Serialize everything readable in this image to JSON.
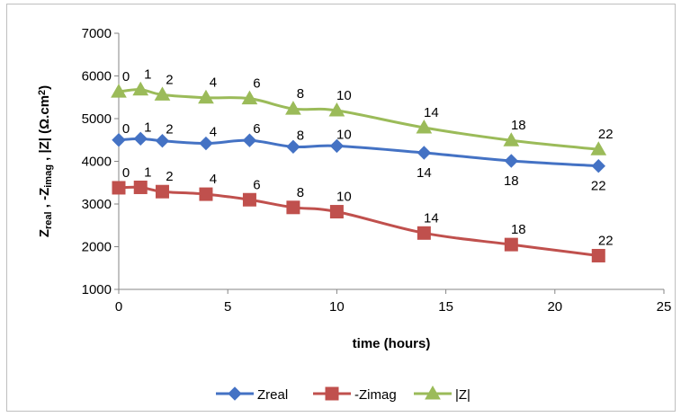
{
  "chart_data": {
    "type": "line",
    "xlabel": "time (hours)",
    "ylabel": "Zreal , -Zimag , |Z| (Ω.cm²)",
    "ylabel_parts": {
      "z1": "Z",
      "sub1": "real",
      "sep1": " , -Z",
      "sub2": "imag",
      "rest": " , |Z| (Ω.cm",
      "sup": "2",
      "end": ")"
    },
    "xlim": [
      0,
      25
    ],
    "ylim": [
      1000,
      7000
    ],
    "x_ticks": [
      0,
      5,
      10,
      15,
      20,
      25
    ],
    "y_ticks": [
      1000,
      2000,
      3000,
      4000,
      5000,
      6000,
      7000
    ],
    "grid": false,
    "legend_position": "bottom",
    "x": [
      0,
      1,
      2,
      4,
      6,
      8,
      10,
      14,
      18,
      22
    ],
    "series": [
      {
        "name": "Zreal",
        "color": "#4472C4",
        "marker": "diamond",
        "values": [
          4500,
          4530,
          4480,
          4420,
          4490,
          4340,
          4360,
          4200,
          4010,
          3890
        ]
      },
      {
        "name": "-Zimag",
        "color": "#C0504D",
        "marker": "square",
        "values": [
          3380,
          3390,
          3290,
          3230,
          3100,
          2920,
          2820,
          2320,
          2050,
          1790
        ]
      },
      {
        "name": "|Z|",
        "color": "#9BBB59",
        "marker": "triangle",
        "values": [
          5630,
          5680,
          5560,
          5490,
          5470,
          5230,
          5190,
          4790,
          4490,
          4280
        ]
      }
    ],
    "data_labels": [
      "0",
      "1",
      "2",
      "4",
      "6",
      "8",
      "10",
      "14",
      "18",
      "22"
    ]
  }
}
